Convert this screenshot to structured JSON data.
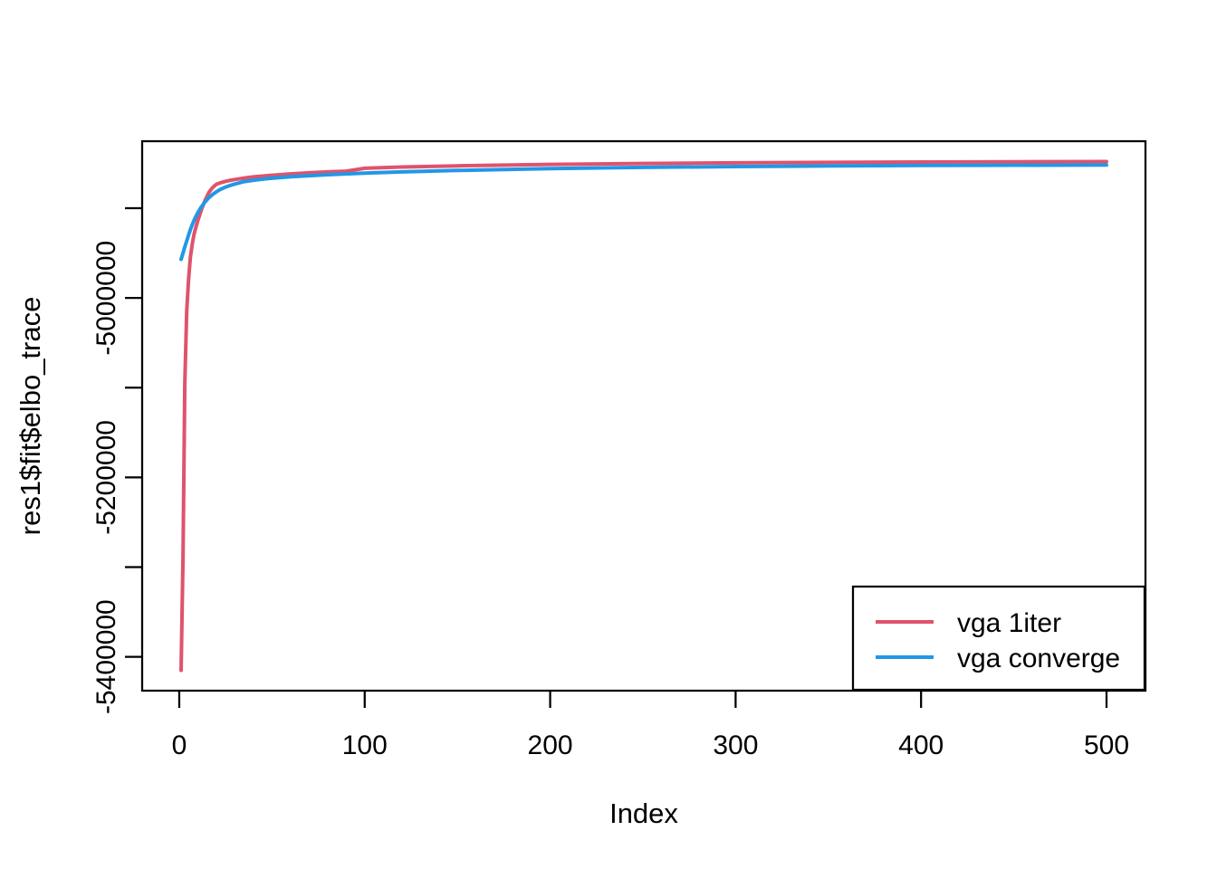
{
  "figure": {
    "kind": "R base graphics line plot",
    "background": "#ffffff",
    "foreground": "#000000"
  },
  "chart_data": {
    "type": "line",
    "title": "",
    "xlabel": "Index",
    "ylabel": "res1$fit$elbo_trace",
    "xlim": [
      -20,
      521
    ],
    "ylim": [
      -5437700,
      -4825300
    ],
    "grid": false,
    "x_ticks": [
      {
        "value": 0,
        "label": "0"
      },
      {
        "value": 100,
        "label": "100"
      },
      {
        "value": 200,
        "label": "200"
      },
      {
        "value": 300,
        "label": "300"
      },
      {
        "value": 400,
        "label": "400"
      },
      {
        "value": 500,
        "label": "500"
      }
    ],
    "y_ticks": [
      {
        "value": -5400000,
        "label": "-5400000"
      },
      {
        "value": -5300000,
        "label": ""
      },
      {
        "value": -5200000,
        "label": "-5200000"
      },
      {
        "value": -5100000,
        "label": ""
      },
      {
        "value": -5000000,
        "label": "-5000000"
      },
      {
        "value": -4900000,
        "label": ""
      }
    ],
    "series": [
      {
        "name": "vga 1iter",
        "color": "#DF536B",
        "points": [
          [
            1,
            -5415000
          ],
          [
            2,
            -5290000
          ],
          [
            3,
            -5095000
          ],
          [
            4,
            -5015000
          ],
          [
            5,
            -4980000
          ],
          [
            6,
            -4955000
          ],
          [
            7,
            -4940000
          ],
          [
            8,
            -4929000
          ],
          [
            9,
            -4921000
          ],
          [
            10,
            -4914000
          ],
          [
            11,
            -4907500
          ],
          [
            12,
            -4901500
          ],
          [
            13,
            -4896000
          ],
          [
            14,
            -4891000
          ],
          [
            15,
            -4886500
          ],
          [
            16,
            -4882500
          ],
          [
            17,
            -4879500
          ],
          [
            18,
            -4877000
          ],
          [
            19,
            -4875000
          ],
          [
            20,
            -4873300
          ],
          [
            22,
            -4871800
          ],
          [
            25,
            -4870000
          ],
          [
            28,
            -4868700
          ],
          [
            30,
            -4868000
          ],
          [
            35,
            -4866400
          ],
          [
            40,
            -4865100
          ],
          [
            45,
            -4864100
          ],
          [
            50,
            -4863200
          ],
          [
            60,
            -4861700
          ],
          [
            70,
            -4860500
          ],
          [
            80,
            -4859500
          ],
          [
            90,
            -4858700
          ],
          [
            100,
            -4855500
          ],
          [
            120,
            -4854100
          ],
          [
            150,
            -4852700
          ],
          [
            200,
            -4851100
          ],
          [
            250,
            -4850100
          ],
          [
            300,
            -4849400
          ],
          [
            350,
            -4848900
          ],
          [
            400,
            -4848500
          ],
          [
            450,
            -4848200
          ],
          [
            500,
            -4848000
          ]
        ]
      },
      {
        "name": "vga converge",
        "color": "#2297E6",
        "points": [
          [
            1,
            -4957000
          ],
          [
            2,
            -4950000
          ],
          [
            3,
            -4943000
          ],
          [
            4,
            -4936500
          ],
          [
            5,
            -4930000
          ],
          [
            6,
            -4924000
          ],
          [
            7,
            -4918500
          ],
          [
            8,
            -4913500
          ],
          [
            9,
            -4909000
          ],
          [
            10,
            -4905000
          ],
          [
            11,
            -4901500
          ],
          [
            12,
            -4898300
          ],
          [
            13,
            -4895400
          ],
          [
            14,
            -4892800
          ],
          [
            15,
            -4890400
          ],
          [
            16,
            -4888300
          ],
          [
            17,
            -4886400
          ],
          [
            18,
            -4884700
          ],
          [
            19,
            -4883100
          ],
          [
            20,
            -4881700
          ],
          [
            22,
            -4879200
          ],
          [
            25,
            -4876300
          ],
          [
            28,
            -4874200
          ],
          [
            30,
            -4873000
          ],
          [
            35,
            -4870300
          ],
          [
            40,
            -4868800
          ],
          [
            45,
            -4867600
          ],
          [
            50,
            -4866600
          ],
          [
            60,
            -4865000
          ],
          [
            70,
            -4863700
          ],
          [
            80,
            -4862600
          ],
          [
            90,
            -4861700
          ],
          [
            100,
            -4860900
          ],
          [
            120,
            -4859500
          ],
          [
            150,
            -4857900
          ],
          [
            200,
            -4855900
          ],
          [
            250,
            -4854500
          ],
          [
            300,
            -4853500
          ],
          [
            350,
            -4852800
          ],
          [
            400,
            -4852300
          ],
          [
            450,
            -4852000
          ],
          [
            500,
            -4851800
          ]
        ]
      }
    ],
    "legend": {
      "position": "bottomright",
      "entries": [
        "vga 1iter",
        "vga converge"
      ]
    }
  }
}
